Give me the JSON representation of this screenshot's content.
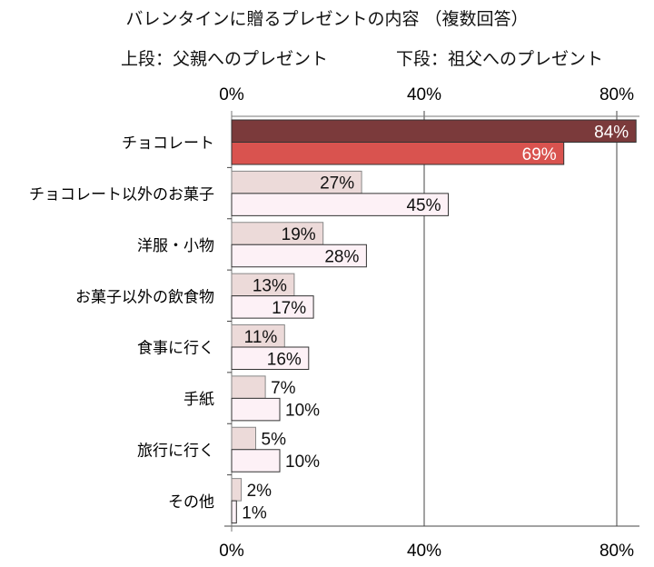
{
  "chart_data": {
    "type": "bar",
    "orientation": "horizontal",
    "title": "バレンタインに贈るプレゼントの内容 （複数回答）",
    "subtitle_left": "上段：父親へのプレゼント",
    "subtitle_right": "下段：祖父へのプレゼント",
    "categories": [
      "チョコレート",
      "チョコレート以外のお菓子",
      "洋服・小物",
      "お菓子以外の飲食物",
      "食事に行く",
      "手紙",
      "旅行に行く",
      "その他"
    ],
    "series": [
      {
        "name": "上段：父親へのプレゼント",
        "values": [
          84,
          27,
          19,
          13,
          11,
          7,
          5,
          2
        ]
      },
      {
        "name": "下段：祖父へのプレゼント",
        "values": [
          69,
          45,
          28,
          17,
          16,
          10,
          10,
          1
        ]
      }
    ],
    "xlim": [
      0,
      84
    ],
    "xticks": [
      "0%",
      "40%",
      "80%"
    ],
    "xtick_values": [
      0,
      40,
      80
    ],
    "grid": true,
    "value_suffix": "%",
    "colors": {
      "father": "#ecdad9",
      "grandfather": "#fdf1f6",
      "father_highlight": "#7b3a3b",
      "grandfather_highlight": "#d9534f"
    }
  }
}
